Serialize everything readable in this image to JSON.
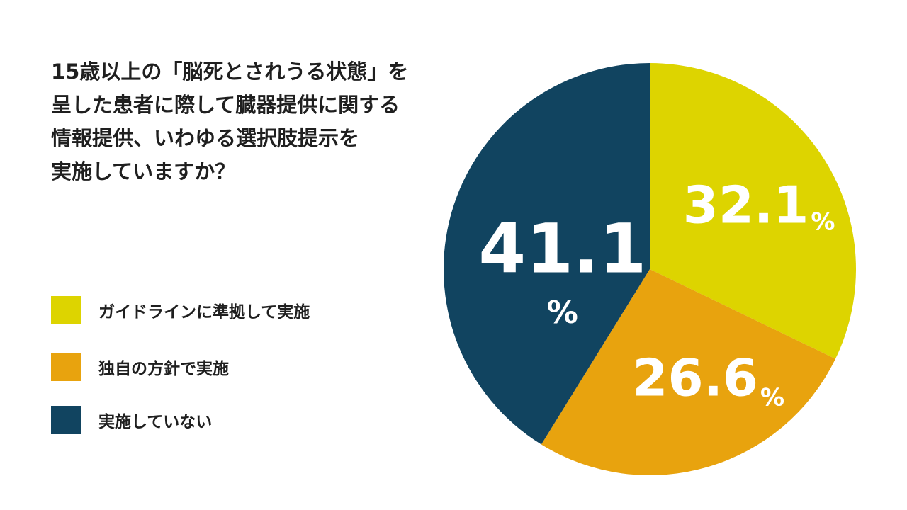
{
  "question": {
    "lines": [
      "15歳以上の「脳死とされうる状態」を",
      "呈した患者に際して臓器提供に関する",
      "情報提供、いわゆる選択肢提示を",
      "実施していますか？"
    ]
  },
  "chart_data": {
    "type": "pie",
    "title": "15歳以上の「脳死とされうる状態」を呈した患者に際して臓器提供に関する情報提供、いわゆる選択肢提示を実施していますか？",
    "unit": "%",
    "start": "12 o'clock, clockwise",
    "slices": [
      {
        "label": "ガイドラインに準拠して実施",
        "value": 32.1,
        "display": "32.1",
        "color": "#ddd400"
      },
      {
        "label": "独自の方針で実施",
        "value": 26.6,
        "display": "26.6",
        "color": "#e8a30e"
      },
      {
        "label": "実施していない",
        "value": 41.1,
        "display": "41.1",
        "color": "#114460"
      }
    ],
    "legend_position": "bottom-left"
  }
}
